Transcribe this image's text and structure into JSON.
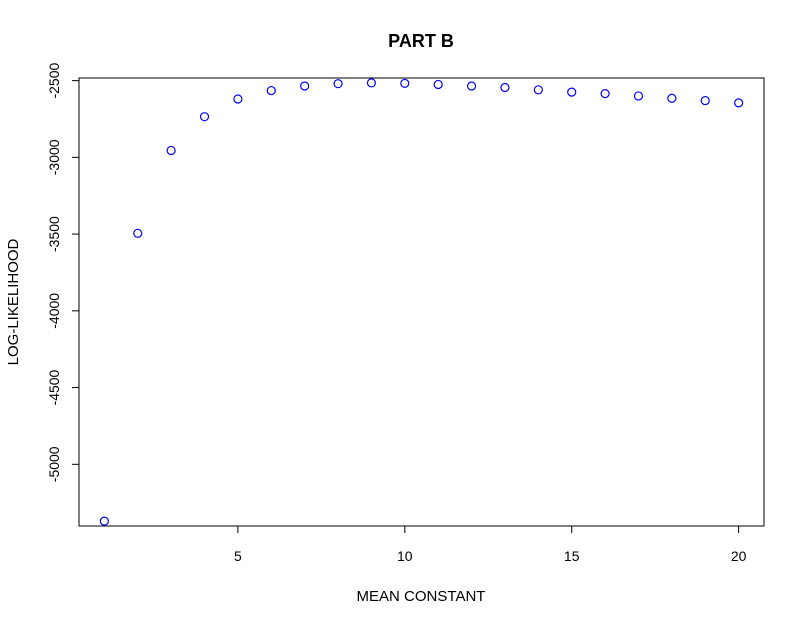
{
  "chart_data": {
    "type": "scatter",
    "title": "PART B",
    "xlabel": "MEAN CONSTANT",
    "ylabel": "LOG-LIKELIHOOD",
    "x": [
      1,
      2,
      3,
      4,
      5,
      6,
      7,
      8,
      9,
      10,
      11,
      12,
      13,
      14,
      15,
      16,
      17,
      18,
      19,
      20
    ],
    "y": [
      -5370,
      -3495,
      -2955,
      -2735,
      -2620,
      -2565,
      -2535,
      -2520,
      -2515,
      -2518,
      -2525,
      -2535,
      -2545,
      -2560,
      -2575,
      -2585,
      -2600,
      -2615,
      -2630,
      -2645
    ],
    "x_ticks": [
      5,
      10,
      15,
      20
    ],
    "x_tick_labels": [
      "5",
      "10",
      "15",
      "20"
    ],
    "y_ticks": [
      -5000,
      -4500,
      -4000,
      -3500,
      -3000,
      -2500
    ],
    "y_tick_labels": [
      "-5000",
      "-4500",
      "-4000",
      "-3500",
      "-3000",
      "-2500"
    ],
    "xlim": [
      0.24,
      20.76
    ],
    "ylim": [
      -5402,
      -2483
    ],
    "marker": "open-circle",
    "point_color": "#0000ff",
    "grid": false,
    "legend": "none"
  }
}
